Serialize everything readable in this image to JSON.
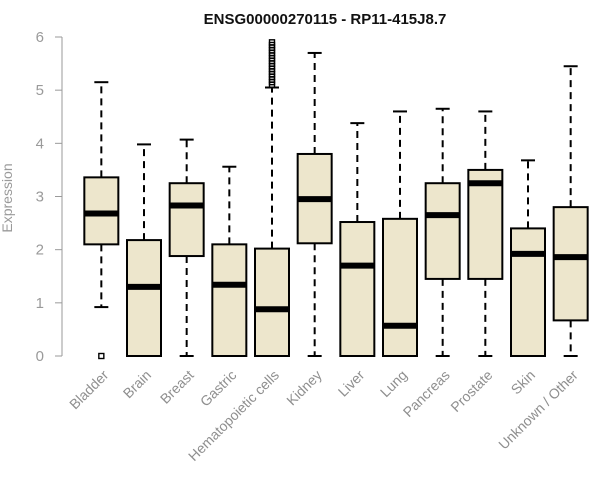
{
  "chart_data": {
    "type": "box",
    "title": "ENSG00000270115 - RP11-415J8.7",
    "xlabel": "",
    "ylabel": "Expression",
    "ylim": [
      0,
      6
    ],
    "yticks": [
      0,
      1,
      2,
      3,
      4,
      5,
      6
    ],
    "grid": false,
    "legend": "none",
    "colors": {
      "box_fill": "#ede6cc",
      "stroke": "#000000",
      "axis": "#9a9a9a",
      "title": "#111111"
    },
    "categories": [
      "Bladder",
      "Brain",
      "Breast",
      "Gastric",
      "Hematopoietic cells",
      "Kidney",
      "Liver",
      "Lung",
      "Pancreas",
      "Prostate",
      "Skin",
      "Unknown / Other"
    ],
    "boxes": [
      {
        "category": "Bladder",
        "whisker_low": 0.92,
        "q1": 2.1,
        "median": 2.68,
        "q3": 3.36,
        "whisker_high": 5.15,
        "outliers": [
          0.0
        ]
      },
      {
        "category": "Brain",
        "whisker_low": 0.0,
        "q1": 0.0,
        "median": 1.3,
        "q3": 2.18,
        "whisker_high": 3.98,
        "outliers": []
      },
      {
        "category": "Breast",
        "whisker_low": 0.0,
        "q1": 1.88,
        "median": 2.83,
        "q3": 3.25,
        "whisker_high": 4.07,
        "outliers": []
      },
      {
        "category": "Gastric",
        "whisker_low": 0.0,
        "q1": 0.0,
        "median": 1.34,
        "q3": 2.1,
        "whisker_high": 3.56,
        "outliers": []
      },
      {
        "category": "Hematopoietic cells",
        "whisker_low": 0.0,
        "q1": 0.0,
        "median": 0.88,
        "q3": 2.02,
        "whisker_high": 5.05,
        "outliers": [
          5.1,
          5.15,
          5.2,
          5.25,
          5.3,
          5.35,
          5.4,
          5.45,
          5.5,
          5.55,
          5.6,
          5.65,
          5.7,
          5.75,
          5.8,
          5.85,
          5.9
        ]
      },
      {
        "category": "Kidney",
        "whisker_low": 0.0,
        "q1": 2.12,
        "median": 2.95,
        "q3": 3.8,
        "whisker_high": 5.7,
        "outliers": []
      },
      {
        "category": "Liver",
        "whisker_low": 0.0,
        "q1": 0.0,
        "median": 1.7,
        "q3": 2.52,
        "whisker_high": 4.38,
        "outliers": []
      },
      {
        "category": "Lung",
        "whisker_low": 0.0,
        "q1": 0.0,
        "median": 0.57,
        "q3": 2.58,
        "whisker_high": 4.6,
        "outliers": []
      },
      {
        "category": "Pancreas",
        "whisker_low": 0.0,
        "q1": 1.45,
        "median": 2.65,
        "q3": 3.25,
        "whisker_high": 4.65,
        "outliers": []
      },
      {
        "category": "Prostate",
        "whisker_low": 0.0,
        "q1": 1.45,
        "median": 3.25,
        "q3": 3.5,
        "whisker_high": 4.6,
        "outliers": []
      },
      {
        "category": "Skin",
        "whisker_low": 0.0,
        "q1": 0.0,
        "median": 1.92,
        "q3": 2.4,
        "whisker_high": 3.68,
        "outliers": []
      },
      {
        "category": "Unknown / Other",
        "whisker_low": 0.0,
        "q1": 0.67,
        "median": 1.86,
        "q3": 2.8,
        "whisker_high": 5.45,
        "outliers": []
      }
    ]
  }
}
